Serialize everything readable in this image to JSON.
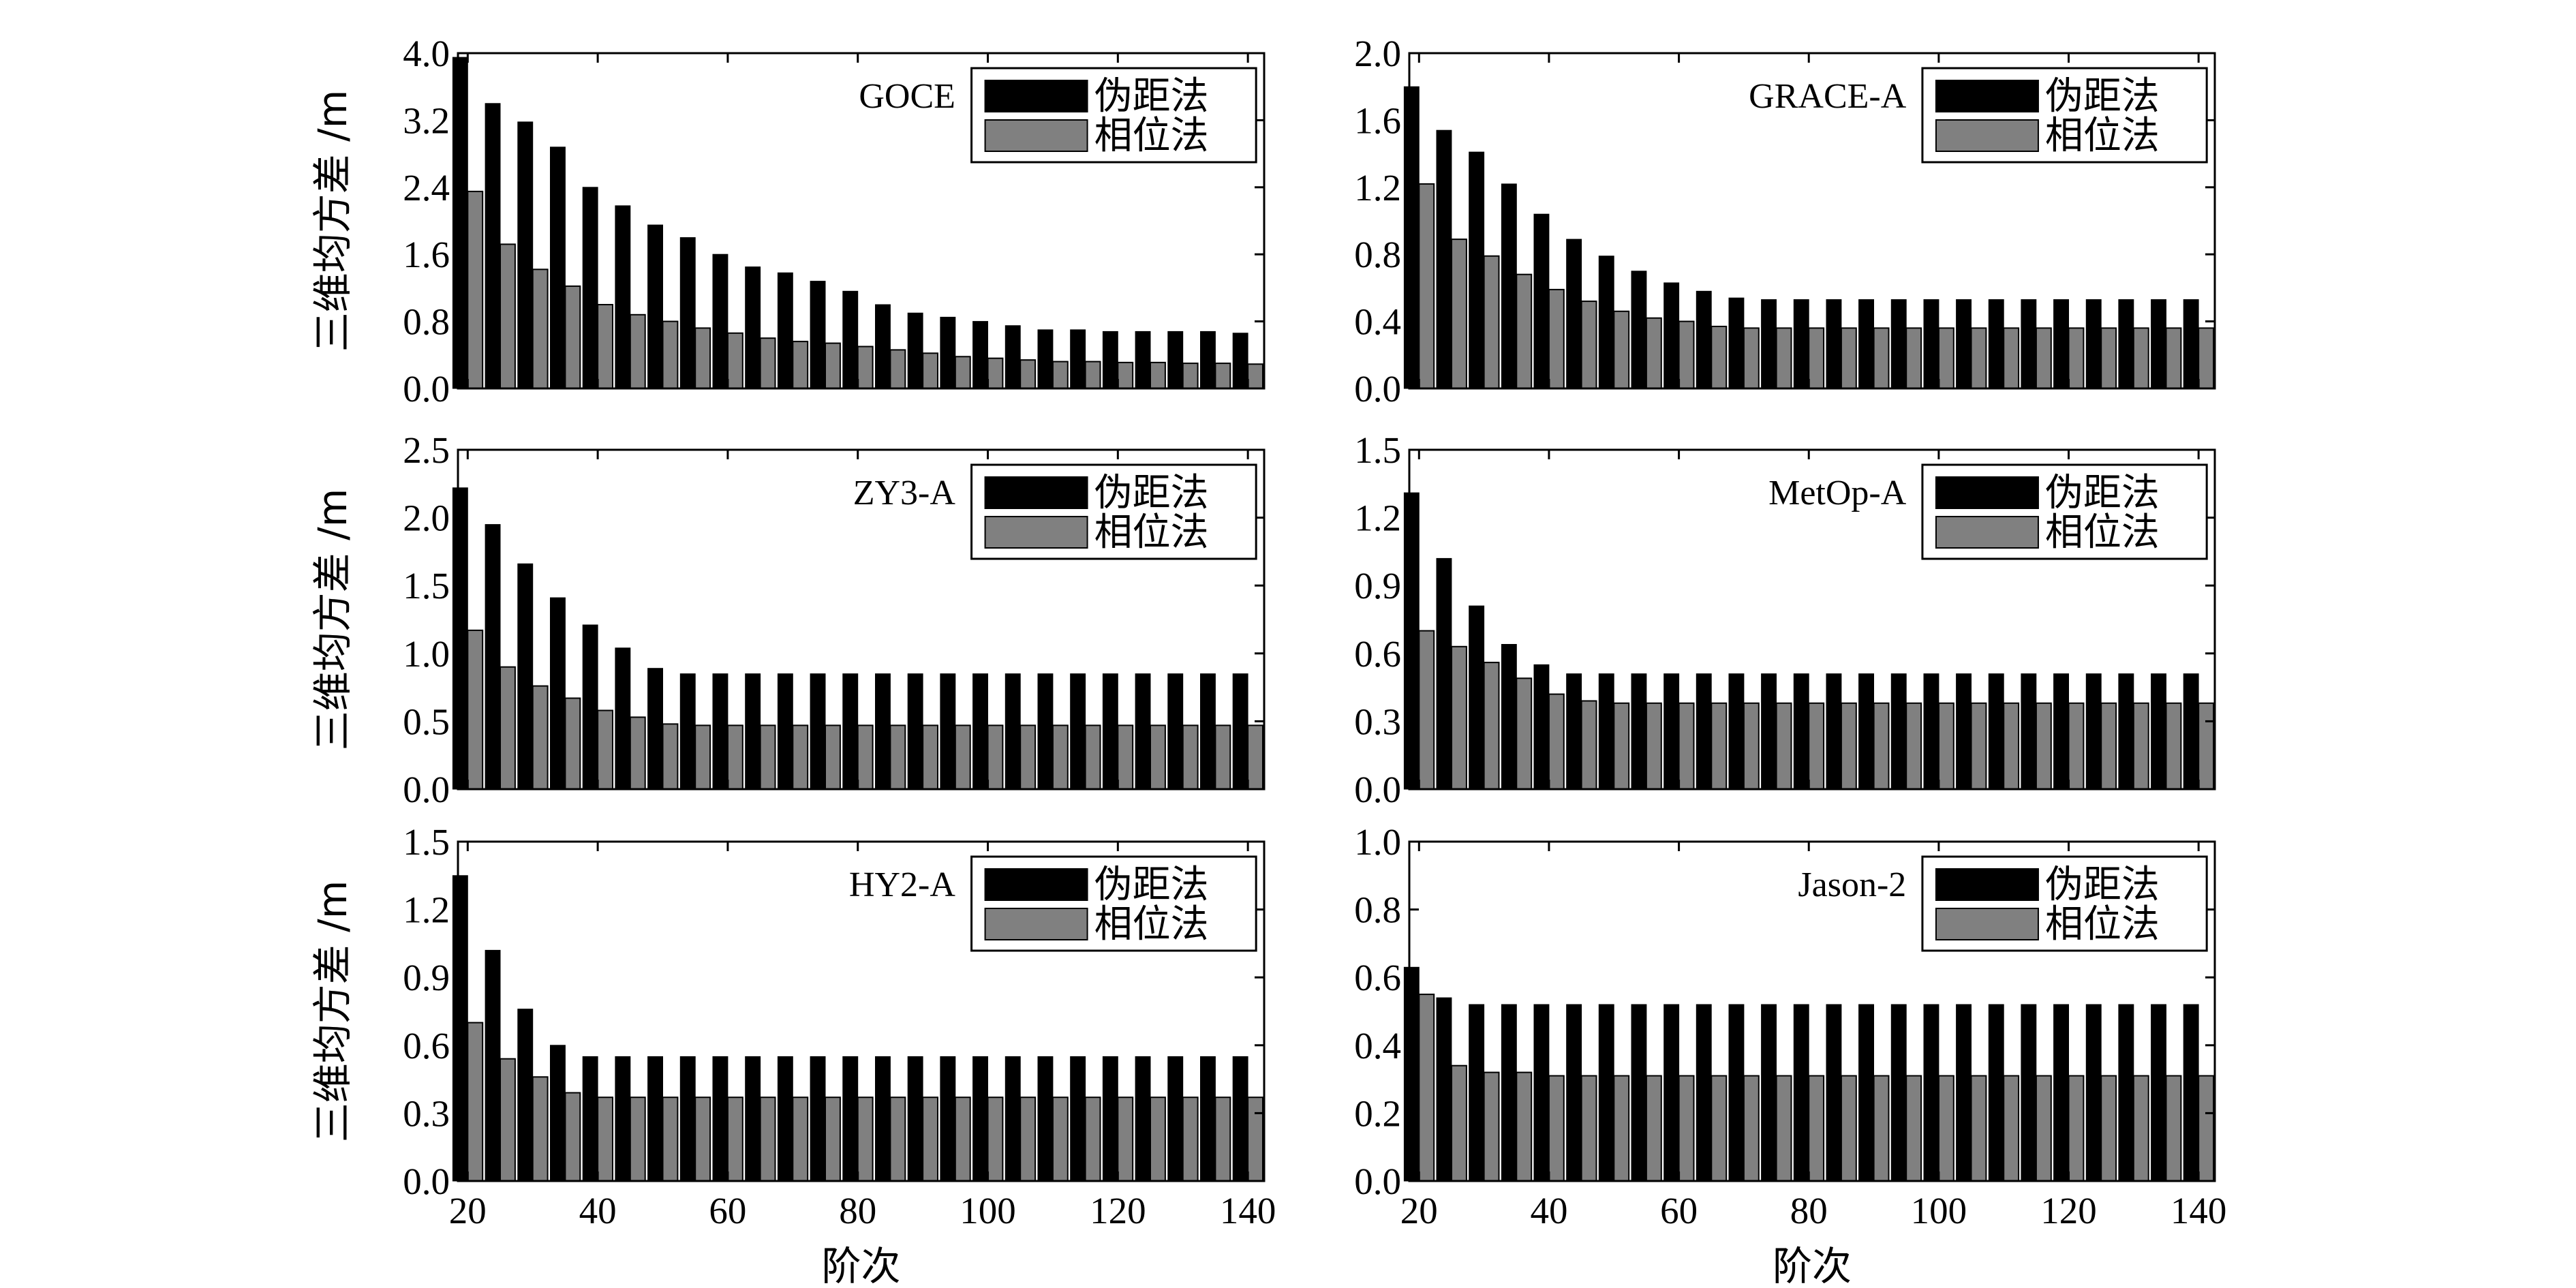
{
  "colors": {
    "pseudorange": "#000000",
    "phase": "#808080",
    "axis": "#000000",
    "background": "#ffffff"
  },
  "legend": {
    "pseudorange": "伪距法",
    "phase": "相位法"
  },
  "ylabel": "三维均方差 /m",
  "xlabel": "阶次",
  "chart_data": [
    {
      "type": "bar",
      "title": "GOCE",
      "categories": [
        20,
        25,
        30,
        35,
        40,
        45,
        50,
        55,
        60,
        65,
        70,
        75,
        80,
        85,
        90,
        95,
        100,
        105,
        110,
        115,
        120,
        125,
        130,
        135,
        140
      ],
      "ylim": [
        0,
        4.0
      ],
      "yticks": [
        "0.0",
        "0.8",
        "1.6",
        "2.4",
        "3.2",
        "4.0"
      ],
      "xticks": [
        "20",
        "40",
        "60",
        "80",
        "100",
        "120",
        "140"
      ],
      "series": [
        {
          "name": "伪距法",
          "values": [
            3.95,
            3.4,
            3.18,
            2.88,
            2.4,
            2.18,
            1.95,
            1.8,
            1.6,
            1.45,
            1.38,
            1.28,
            1.16,
            1.0,
            0.9,
            0.85,
            0.8,
            0.75,
            0.7,
            0.7,
            0.68,
            0.68,
            0.68,
            0.68,
            0.66
          ]
        },
        {
          "name": "相位法",
          "values": [
            2.35,
            1.72,
            1.42,
            1.22,
            1.0,
            0.88,
            0.8,
            0.72,
            0.66,
            0.6,
            0.56,
            0.54,
            0.5,
            0.46,
            0.42,
            0.38,
            0.36,
            0.34,
            0.32,
            0.32,
            0.31,
            0.31,
            0.3,
            0.3,
            0.29
          ]
        }
      ]
    },
    {
      "type": "bar",
      "title": "GRACE-A",
      "categories": [
        20,
        25,
        30,
        35,
        40,
        45,
        50,
        55,
        60,
        65,
        70,
        75,
        80,
        85,
        90,
        95,
        100,
        105,
        110,
        115,
        120,
        125,
        130,
        135,
        140
      ],
      "ylim": [
        0,
        2.0
      ],
      "yticks": [
        "0.0",
        "0.4",
        "0.8",
        "1.2",
        "1.6",
        "2.0"
      ],
      "xticks": [
        "20",
        "40",
        "60",
        "80",
        "100",
        "120",
        "140"
      ],
      "series": [
        {
          "name": "伪距法",
          "values": [
            1.8,
            1.54,
            1.41,
            1.22,
            1.04,
            0.89,
            0.79,
            0.7,
            0.63,
            0.58,
            0.54,
            0.53,
            0.53,
            0.53,
            0.53,
            0.53,
            0.53,
            0.53,
            0.53,
            0.53,
            0.53,
            0.53,
            0.53,
            0.53,
            0.53
          ]
        },
        {
          "name": "相位法",
          "values": [
            1.22,
            0.89,
            0.79,
            0.68,
            0.59,
            0.52,
            0.46,
            0.42,
            0.4,
            0.37,
            0.36,
            0.36,
            0.36,
            0.36,
            0.36,
            0.36,
            0.36,
            0.36,
            0.36,
            0.36,
            0.36,
            0.36,
            0.36,
            0.36,
            0.36
          ]
        }
      ]
    },
    {
      "type": "bar",
      "title": "ZY3-A",
      "categories": [
        20,
        25,
        30,
        35,
        40,
        45,
        50,
        55,
        60,
        65,
        70,
        75,
        80,
        85,
        90,
        95,
        100,
        105,
        110,
        115,
        120,
        125,
        130,
        135,
        140
      ],
      "ylim": [
        0,
        2.5
      ],
      "yticks": [
        "0.0",
        "0.5",
        "1.0",
        "1.5",
        "2.0",
        "2.5"
      ],
      "xticks": [
        "20",
        "40",
        "60",
        "80",
        "100",
        "120",
        "140"
      ],
      "series": [
        {
          "name": "伪距法",
          "values": [
            2.22,
            1.95,
            1.66,
            1.41,
            1.21,
            1.04,
            0.89,
            0.85,
            0.85,
            0.85,
            0.85,
            0.85,
            0.85,
            0.85,
            0.85,
            0.85,
            0.85,
            0.85,
            0.85,
            0.85,
            0.85,
            0.85,
            0.85,
            0.85,
            0.85
          ]
        },
        {
          "name": "相位法",
          "values": [
            1.17,
            0.9,
            0.76,
            0.67,
            0.58,
            0.53,
            0.48,
            0.47,
            0.47,
            0.47,
            0.47,
            0.47,
            0.47,
            0.47,
            0.47,
            0.47,
            0.47,
            0.47,
            0.47,
            0.47,
            0.47,
            0.47,
            0.47,
            0.47,
            0.47
          ]
        }
      ]
    },
    {
      "type": "bar",
      "title": "MetOp-A",
      "categories": [
        20,
        25,
        30,
        35,
        40,
        45,
        50,
        55,
        60,
        65,
        70,
        75,
        80,
        85,
        90,
        95,
        100,
        105,
        110,
        115,
        120,
        125,
        130,
        135,
        140
      ],
      "ylim": [
        0,
        1.5
      ],
      "yticks": [
        "0.0",
        "0.3",
        "0.6",
        "0.9",
        "1.2",
        "1.5"
      ],
      "xticks": [
        "20",
        "40",
        "60",
        "80",
        "100",
        "120",
        "140"
      ],
      "series": [
        {
          "name": "伪距法",
          "values": [
            1.31,
            1.02,
            0.81,
            0.64,
            0.55,
            0.51,
            0.51,
            0.51,
            0.51,
            0.51,
            0.51,
            0.51,
            0.51,
            0.51,
            0.51,
            0.51,
            0.51,
            0.51,
            0.51,
            0.51,
            0.51,
            0.51,
            0.51,
            0.51,
            0.51
          ]
        },
        {
          "name": "相位法",
          "values": [
            0.7,
            0.63,
            0.56,
            0.49,
            0.42,
            0.39,
            0.38,
            0.38,
            0.38,
            0.38,
            0.38,
            0.38,
            0.38,
            0.38,
            0.38,
            0.38,
            0.38,
            0.38,
            0.38,
            0.38,
            0.38,
            0.38,
            0.38,
            0.38,
            0.38
          ]
        }
      ]
    },
    {
      "type": "bar",
      "title": "HY2-A",
      "categories": [
        20,
        25,
        30,
        35,
        40,
        45,
        50,
        55,
        60,
        65,
        70,
        75,
        80,
        85,
        90,
        95,
        100,
        105,
        110,
        115,
        120,
        125,
        130,
        135,
        140
      ],
      "ylim": [
        0,
        1.5
      ],
      "yticks": [
        "0.0",
        "0.3",
        "0.6",
        "0.9",
        "1.2",
        "1.5"
      ],
      "xticks": [
        "20",
        "40",
        "60",
        "80",
        "100",
        "120",
        "140"
      ],
      "series": [
        {
          "name": "伪距法",
          "values": [
            1.35,
            1.02,
            0.76,
            0.6,
            0.55,
            0.55,
            0.55,
            0.55,
            0.55,
            0.55,
            0.55,
            0.55,
            0.55,
            0.55,
            0.55,
            0.55,
            0.55,
            0.55,
            0.55,
            0.55,
            0.55,
            0.55,
            0.55,
            0.55,
            0.55
          ]
        },
        {
          "name": "相位法",
          "values": [
            0.7,
            0.54,
            0.46,
            0.39,
            0.37,
            0.37,
            0.37,
            0.37,
            0.37,
            0.37,
            0.37,
            0.37,
            0.37,
            0.37,
            0.37,
            0.37,
            0.37,
            0.37,
            0.37,
            0.37,
            0.37,
            0.37,
            0.37,
            0.37,
            0.37
          ]
        }
      ]
    },
    {
      "type": "bar",
      "title": "Jason-2",
      "categories": [
        20,
        25,
        30,
        35,
        40,
        45,
        50,
        55,
        60,
        65,
        70,
        75,
        80,
        85,
        90,
        95,
        100,
        105,
        110,
        115,
        120,
        125,
        130,
        135,
        140
      ],
      "ylim": [
        0,
        1.0
      ],
      "yticks": [
        "0.0",
        "0.2",
        "0.4",
        "0.6",
        "0.8",
        "1.0"
      ],
      "xticks": [
        "20",
        "40",
        "60",
        "80",
        "100",
        "120",
        "140"
      ],
      "series": [
        {
          "name": "伪距法",
          "values": [
            0.63,
            0.54,
            0.52,
            0.52,
            0.52,
            0.52,
            0.52,
            0.52,
            0.52,
            0.52,
            0.52,
            0.52,
            0.52,
            0.52,
            0.52,
            0.52,
            0.52,
            0.52,
            0.52,
            0.52,
            0.52,
            0.52,
            0.52,
            0.52,
            0.52
          ]
        },
        {
          "name": "相位法",
          "values": [
            0.55,
            0.34,
            0.32,
            0.32,
            0.31,
            0.31,
            0.31,
            0.31,
            0.31,
            0.31,
            0.31,
            0.31,
            0.31,
            0.31,
            0.31,
            0.31,
            0.31,
            0.31,
            0.31,
            0.31,
            0.31,
            0.31,
            0.31,
            0.31,
            0.31
          ]
        }
      ]
    }
  ]
}
